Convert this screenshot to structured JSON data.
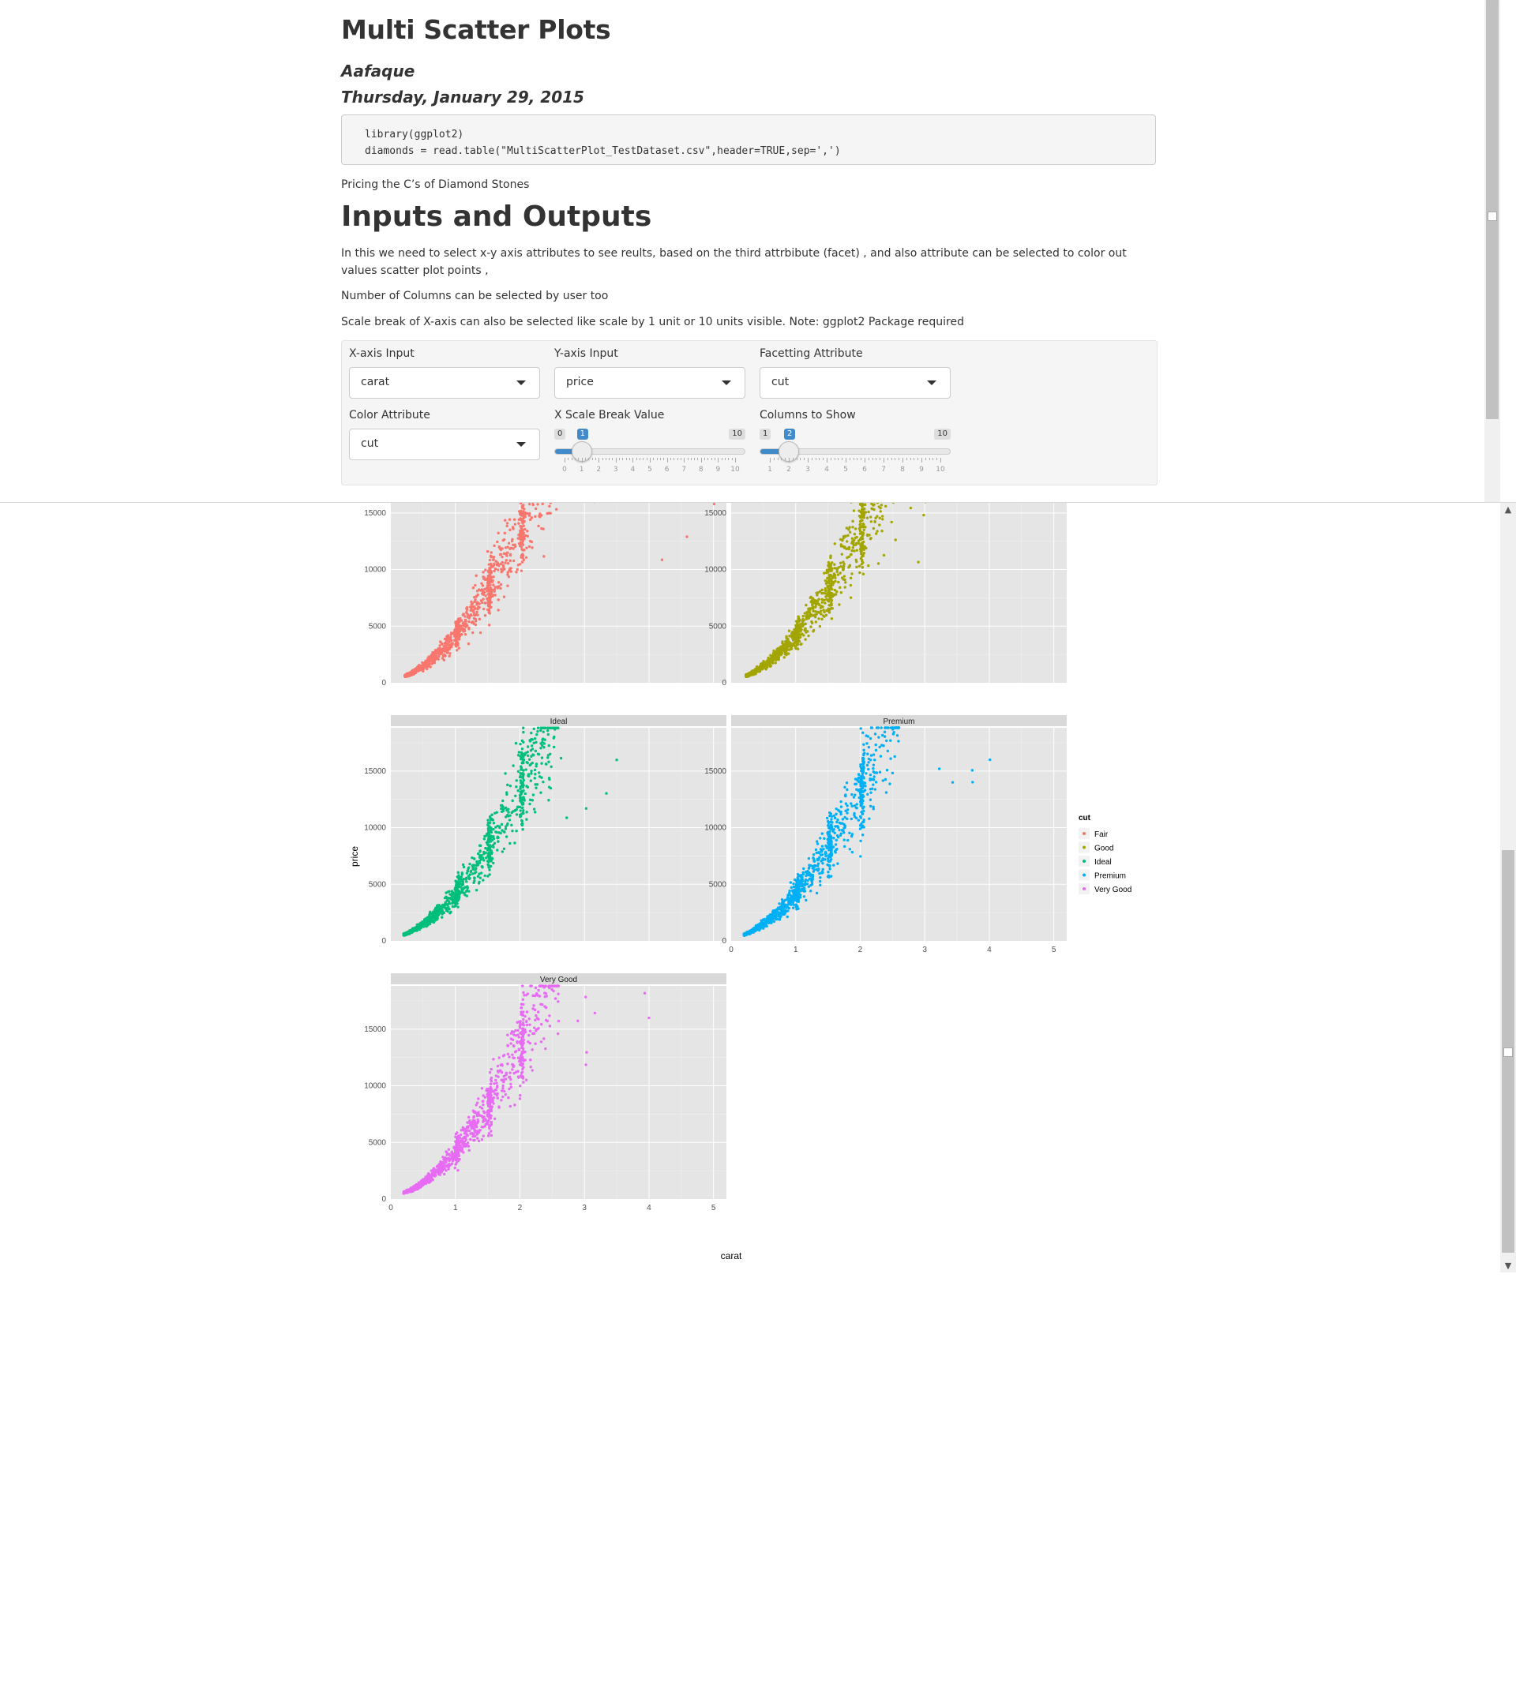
{
  "document": {
    "title": "Multi Scatter Plots",
    "author": "Aafaque",
    "date": "Thursday, January 29, 2015",
    "code": [
      "library(ggplot2)",
      "diamonds = read.table(\"MultiScatterPlot_TestDataset.csv\",header=TRUE,sep=',')"
    ],
    "intro": "Pricing the C’s of Diamond Stones",
    "section_title": "Inputs and Outputs",
    "paragraphs": [
      "In this we need to select x-y axis attributes to see reults, based on the third attrbibute (facet) , and also attribute can be selected to color out values scatter plot points ,",
      "Number of Columns can be selected by user too",
      "Scale break of X-axis can also be selected like scale by 1 unit or 10 units visible. Note: ggplot2 Package required"
    ]
  },
  "inputs": {
    "x_axis": {
      "label": "X-axis Input",
      "value": "carat"
    },
    "y_axis": {
      "label": "Y-axis Input",
      "value": "price"
    },
    "facet": {
      "label": "Facetting Attribute",
      "value": "cut"
    },
    "color": {
      "label": "Color Attribute",
      "value": "cut"
    },
    "x_break": {
      "label": "X Scale Break Value",
      "min": 0,
      "max": 10,
      "value": 1,
      "min_label": "0",
      "max_label": "10",
      "value_label": "1",
      "ticks": [
        "0",
        "1",
        "2",
        "3",
        "4",
        "5",
        "6",
        "7",
        "8",
        "9",
        "10"
      ]
    },
    "columns": {
      "label": "Columns to Show",
      "min": 1,
      "max": 10,
      "value": 2,
      "min_label": "1",
      "max_label": "10",
      "value_label": "2",
      "ticks": [
        "1",
        "2",
        "3",
        "4",
        "5",
        "6",
        "7",
        "8",
        "9",
        "10"
      ]
    }
  },
  "chart_data": {
    "type": "scatter",
    "xlabel": "carat",
    "ylabel": "price",
    "xlim": [
      0,
      5.2
    ],
    "ylim": [
      0,
      18823
    ],
    "x_ticks": [
      "0",
      "1",
      "2",
      "3",
      "4",
      "5"
    ],
    "y_ticks": [
      "0",
      "5000",
      "10000",
      "15000"
    ],
    "facet_by": "cut",
    "ncol": 2,
    "legend": {
      "title": "cut",
      "position": "right"
    },
    "series": [
      {
        "name": "Fair",
        "color": "#F8766D",
        "show_strip": false,
        "x_range": [
          0.22,
          5.01
        ],
        "y_range": [
          337,
          18574
        ]
      },
      {
        "name": "Good",
        "color": "#A3A500",
        "show_strip": false,
        "x_range": [
          0.23,
          3.01
        ],
        "y_range": [
          327,
          18788
        ]
      },
      {
        "name": "Ideal",
        "color": "#00BF7D",
        "show_strip": true,
        "x_range": [
          0.2,
          3.5
        ],
        "y_range": [
          326,
          18806
        ]
      },
      {
        "name": "Premium",
        "color": "#00B0F6",
        "show_strip": true,
        "x_range": [
          0.2,
          4.01
        ],
        "y_range": [
          326,
          18823
        ]
      },
      {
        "name": "Very Good",
        "color": "#E76BF3",
        "show_strip": true,
        "x_range": [
          0.2,
          4.0
        ],
        "y_range": [
          336,
          18818
        ]
      }
    ]
  }
}
